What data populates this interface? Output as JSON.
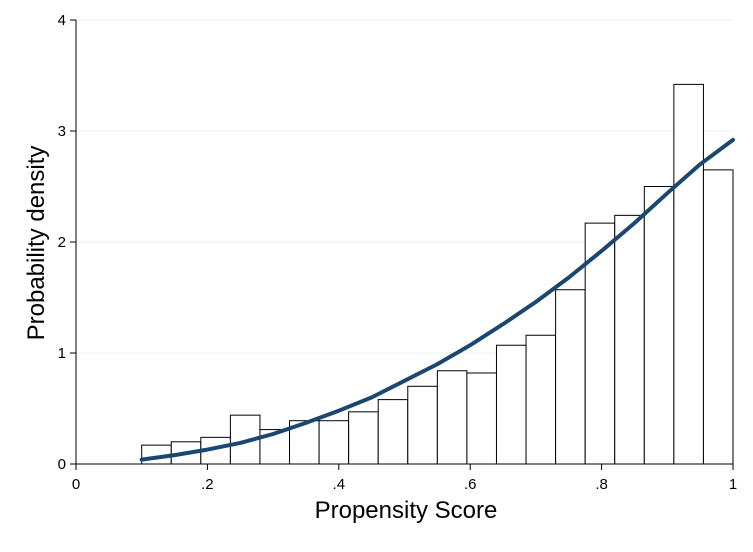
{
  "chart_data": {
    "type": "bar",
    "subtype": "histogram-with-density-curve",
    "title": "",
    "xlabel": "Propensity Score",
    "ylabel": "Probability density",
    "xlim": [
      0,
      1
    ],
    "ylim": [
      0,
      4
    ],
    "x_ticks": [
      0,
      0.2,
      0.4,
      0.6,
      0.8,
      1
    ],
    "x_tick_labels": [
      "0",
      ".2",
      ".4",
      ".6",
      ".8",
      "1"
    ],
    "y_ticks": [
      0,
      1,
      2,
      3,
      4
    ],
    "y_tick_labels": [
      "0",
      "1",
      "2",
      "3",
      "4"
    ],
    "grid": "horizontal",
    "colors": {
      "bar_fill": "#ffffff",
      "bar_stroke": "#000000",
      "curve": "#1a476f",
      "grid": "#eaf2f3",
      "axis": "#000000"
    },
    "bins": [
      {
        "x0": 0.1,
        "x1": 0.145,
        "value": 0.17
      },
      {
        "x0": 0.145,
        "x1": 0.19,
        "value": 0.2
      },
      {
        "x0": 0.19,
        "x1": 0.235,
        "value": 0.24
      },
      {
        "x0": 0.235,
        "x1": 0.28,
        "value": 0.44
      },
      {
        "x0": 0.28,
        "x1": 0.325,
        "value": 0.31
      },
      {
        "x0": 0.325,
        "x1": 0.37,
        "value": 0.39
      },
      {
        "x0": 0.37,
        "x1": 0.415,
        "value": 0.39
      },
      {
        "x0": 0.415,
        "x1": 0.46,
        "value": 0.47
      },
      {
        "x0": 0.46,
        "x1": 0.505,
        "value": 0.58
      },
      {
        "x0": 0.505,
        "x1": 0.55,
        "value": 0.7
      },
      {
        "x0": 0.55,
        "x1": 0.595,
        "value": 0.84
      },
      {
        "x0": 0.595,
        "x1": 0.64,
        "value": 0.82
      },
      {
        "x0": 0.64,
        "x1": 0.685,
        "value": 1.07
      },
      {
        "x0": 0.685,
        "x1": 0.73,
        "value": 1.16
      },
      {
        "x0": 0.73,
        "x1": 0.775,
        "value": 1.57
      },
      {
        "x0": 0.775,
        "x1": 0.82,
        "value": 2.17
      },
      {
        "x0": 0.82,
        "x1": 0.865,
        "value": 2.24
      },
      {
        "x0": 0.865,
        "x1": 0.91,
        "value": 2.5
      },
      {
        "x0": 0.91,
        "x1": 0.955,
        "value": 3.42
      },
      {
        "x0": 0.955,
        "x1": 1.0,
        "value": 2.65
      }
    ],
    "curve": {
      "type": "line",
      "x": [
        0.1,
        0.15,
        0.2,
        0.25,
        0.3,
        0.35,
        0.4,
        0.45,
        0.5,
        0.55,
        0.6,
        0.65,
        0.7,
        0.75,
        0.8,
        0.85,
        0.9,
        0.95,
        1.0
      ],
      "y": [
        0.04,
        0.08,
        0.13,
        0.19,
        0.27,
        0.37,
        0.48,
        0.6,
        0.75,
        0.9,
        1.07,
        1.26,
        1.46,
        1.68,
        1.92,
        2.17,
        2.44,
        2.7,
        2.92
      ]
    }
  }
}
